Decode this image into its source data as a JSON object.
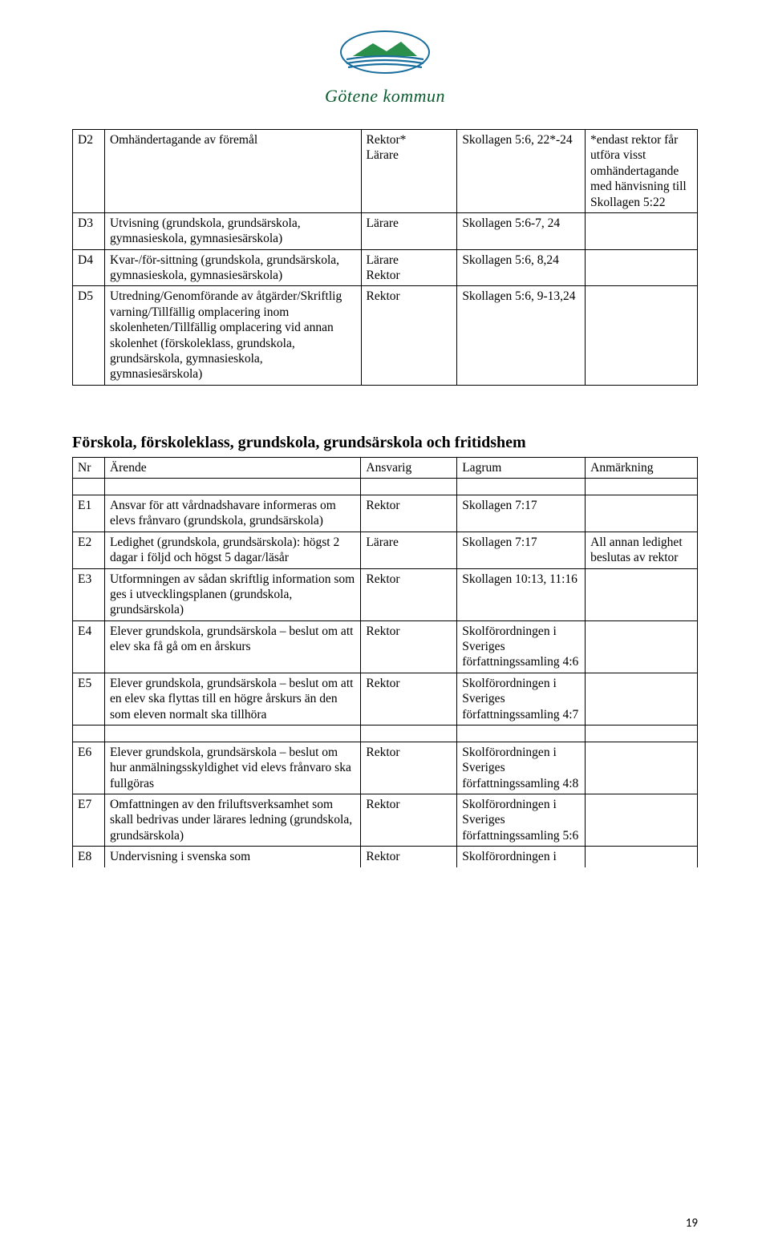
{
  "logo": {
    "name": "Götene kommun"
  },
  "tableD": {
    "rows": [
      {
        "nr": "D2",
        "desc": "Omhändertagande av föremål",
        "resp": "Rektor*\nLärare",
        "law": "Skollagen 5:6, 22*-24",
        "note": "*endast rektor får utföra visst omhändertagande med hänvisning till Skollagen 5:22"
      },
      {
        "nr": "D3",
        "desc": "Utvisning (grundskola, grundsärskola, gymnasieskola, gymnasiesärskola)",
        "resp": "Lärare",
        "law": "Skollagen 5:6-7, 24",
        "note": ""
      },
      {
        "nr": "D4",
        "desc": "Kvar-/för-sittning (grundskola, grundsärskola, gymnasieskola, gymnasiesärskola)",
        "resp": "Lärare\nRektor",
        "law": "Skollagen 5:6, 8,24",
        "note": ""
      },
      {
        "nr": "D5",
        "desc": "Utredning/Genomförande av åtgärder/Skriftlig varning/Tillfällig omplacering inom skolenheten/Tillfällig omplacering vid annan skolenhet (förskoleklass, grundskola, grundsärskola, gymnasieskola, gymnasiesärskola)",
        "resp": "Rektor",
        "law": "Skollagen 5:6, 9-13,24",
        "note": ""
      }
    ]
  },
  "sectionE": {
    "heading": "Förskola, förskoleklass, grundskola, grundsärskola och fritidshem",
    "headers": {
      "nr": "Nr",
      "desc": "Ärende",
      "resp": "Ansvarig",
      "law": "Lagrum",
      "note": "Anmärkning"
    },
    "rows1": [
      {
        "nr": "E1",
        "desc": "Ansvar för att vårdnadshavare informeras om elevs frånvaro (grundskola, grundsärskola)",
        "resp": "Rektor",
        "law": "Skollagen 7:17",
        "note": ""
      },
      {
        "nr": "E2",
        "desc": "Ledighet (grundskola, grundsärskola): högst 2 dagar i följd och högst 5 dagar/läsår",
        "resp": "Lärare",
        "law": "Skollagen 7:17",
        "note": "All annan ledighet beslutas av rektor"
      },
      {
        "nr": "E3",
        "desc": "Utformningen av sådan skriftlig information som ges i utvecklingsplanen (grundskola, grundsärskola)",
        "resp": "Rektor",
        "law": "Skollagen 10:13, 11:16",
        "note": ""
      },
      {
        "nr": "E4",
        "desc": "Elever grundskola, grundsärskola – beslut om att elev ska få gå om en årskurs",
        "resp": "Rektor",
        "law": "Skolförordningen i Sveriges författningssamling 4:6",
        "note": ""
      },
      {
        "nr": "E5",
        "desc": "Elever grundskola, grundsärskola – beslut om att en elev ska flyttas till en högre årskurs än den som eleven normalt ska tillhöra",
        "resp": "Rektor",
        "law": "Skolförordningen i Sveriges författningssamling 4:7",
        "note": ""
      }
    ],
    "rows2": [
      {
        "nr": "E6",
        "desc": "Elever grundskola, grundsärskola – beslut om hur anmälningsskyldighet vid elevs frånvaro ska fullgöras",
        "resp": "Rektor",
        "law": "Skolförordningen i Sveriges författningssamling 4:8",
        "note": ""
      },
      {
        "nr": "E7",
        "desc": "Omfattningen av den friluftsverksamhet som skall bedrivas under lärares ledning (grundskola, grundsärskola)",
        "resp": "Rektor",
        "law": "Skolförordningen i Sveriges författningssamling 5:6",
        "note": ""
      },
      {
        "nr": "E8",
        "desc": "Undervisning i svenska som",
        "resp": "Rektor",
        "law": "Skolförordningen i",
        "note": ""
      }
    ]
  },
  "pageNumber": "19"
}
